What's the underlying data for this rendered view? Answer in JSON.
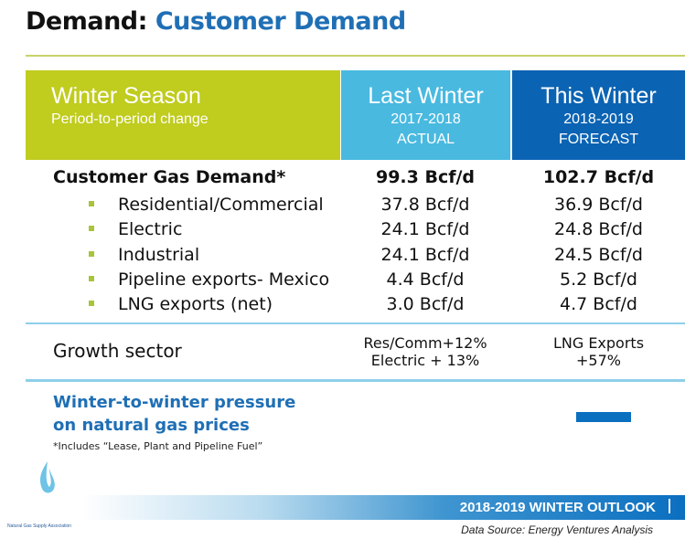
{
  "title": {
    "prefix": "Demand:",
    "main": "Customer Demand"
  },
  "header": {
    "season": {
      "title": "Winter Season",
      "subtitle": "Period-to-period change"
    },
    "last": {
      "title": "Last Winter",
      "years": "2017-2018",
      "kind": "ACTUAL"
    },
    "this": {
      "title": "This Winter",
      "years": "2018-2019",
      "kind": "FORECAST"
    }
  },
  "colors": {
    "green": "#c0cc1e",
    "light_blue": "#49b9e0",
    "dark_blue": "#0b63b3",
    "accent_text": "#1f6fb5"
  },
  "total": {
    "label": "Customer Gas Demand*",
    "last": "99.3 Bcf/d",
    "this": "102.7 Bcf/d"
  },
  "rows": [
    {
      "label": "Residential/Commercial",
      "last": "37.8 Bcf/d",
      "this": "36.9 Bcf/d"
    },
    {
      "label": "Electric",
      "last": "24.1 Bcf/d",
      "this": "24.8 Bcf/d"
    },
    {
      "label": "Industrial",
      "last": "24.1 Bcf/d",
      "this": "24.5 Bcf/d"
    },
    {
      "label": "Pipeline exports- Mexico",
      "last": "4.4 Bcf/d",
      "this": "5.2 Bcf/d"
    },
    {
      "label": "LNG exports (net)",
      "last": "3.0 Bcf/d",
      "this": "4.7 Bcf/d"
    }
  ],
  "growth": {
    "label": "Growth sector",
    "last_line1": "Res/Comm+12%",
    "last_line2": "Electric + 13%",
    "this_line1": "LNG Exports",
    "this_line2": "+57%"
  },
  "pressure": {
    "line1": "Winter-to-winter pressure",
    "line2": "on natural gas prices"
  },
  "footnote": "*Includes “Lease, Plant and Pipeline Fuel”",
  "footer": {
    "outlook": "2018-2019 WINTER OUTLOOK",
    "source": "Data Source: Energy Ventures Analysis",
    "org": "Natural Gas Supply Association"
  }
}
